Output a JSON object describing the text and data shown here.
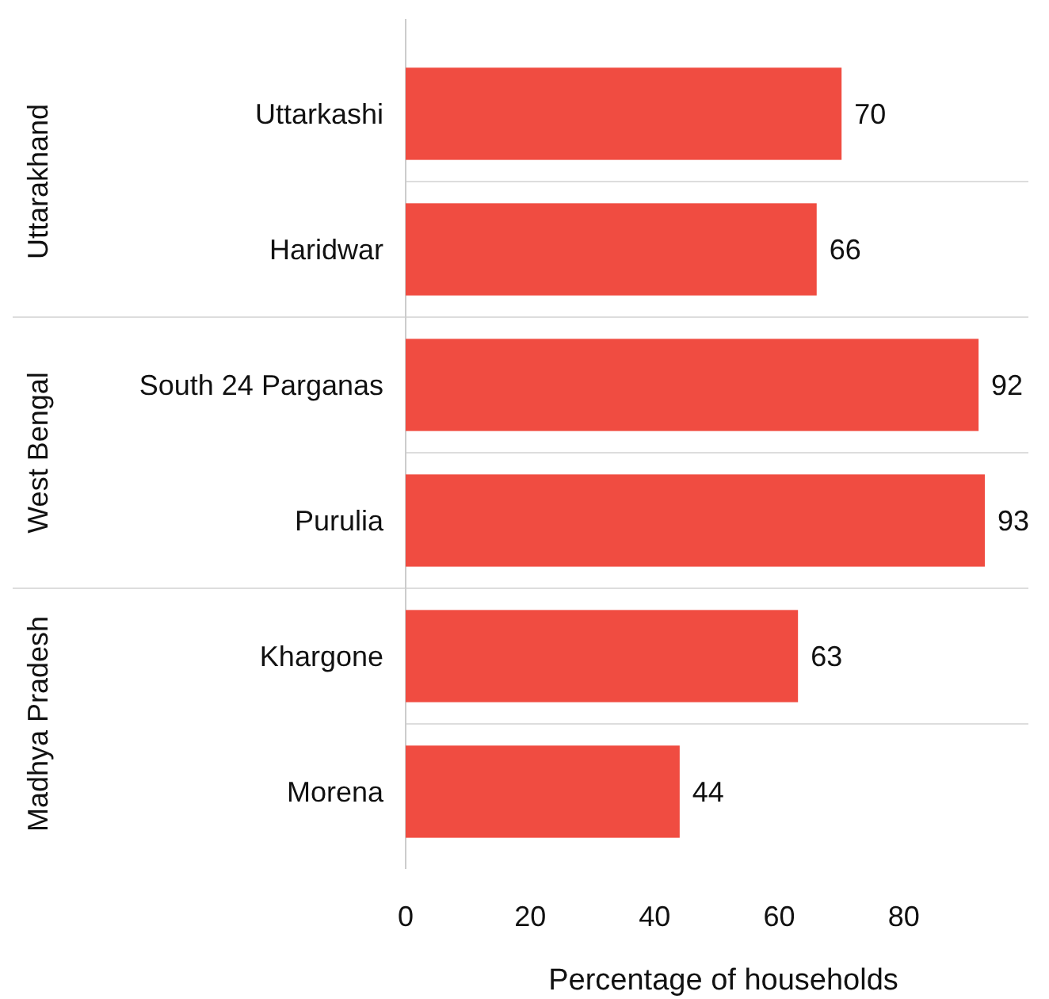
{
  "chart_data": {
    "type": "bar",
    "orientation": "horizontal",
    "categories": [
      "Uttarkashi",
      "Haridwar",
      "South 24 Parganas",
      "Purulia",
      "Khargone",
      "Morena"
    ],
    "values": [
      70,
      66,
      92,
      93,
      63,
      44
    ],
    "color": "#f04c41",
    "data_labels": true,
    "xlim": [
      0,
      100
    ],
    "xticks": [
      0,
      20,
      40,
      60,
      80
    ],
    "xlabel": "Percentage of households",
    "grid": "y",
    "annotations": [
      "Uttarakhand",
      "West Bengal",
      "Madhya Pradesh"
    ]
  }
}
